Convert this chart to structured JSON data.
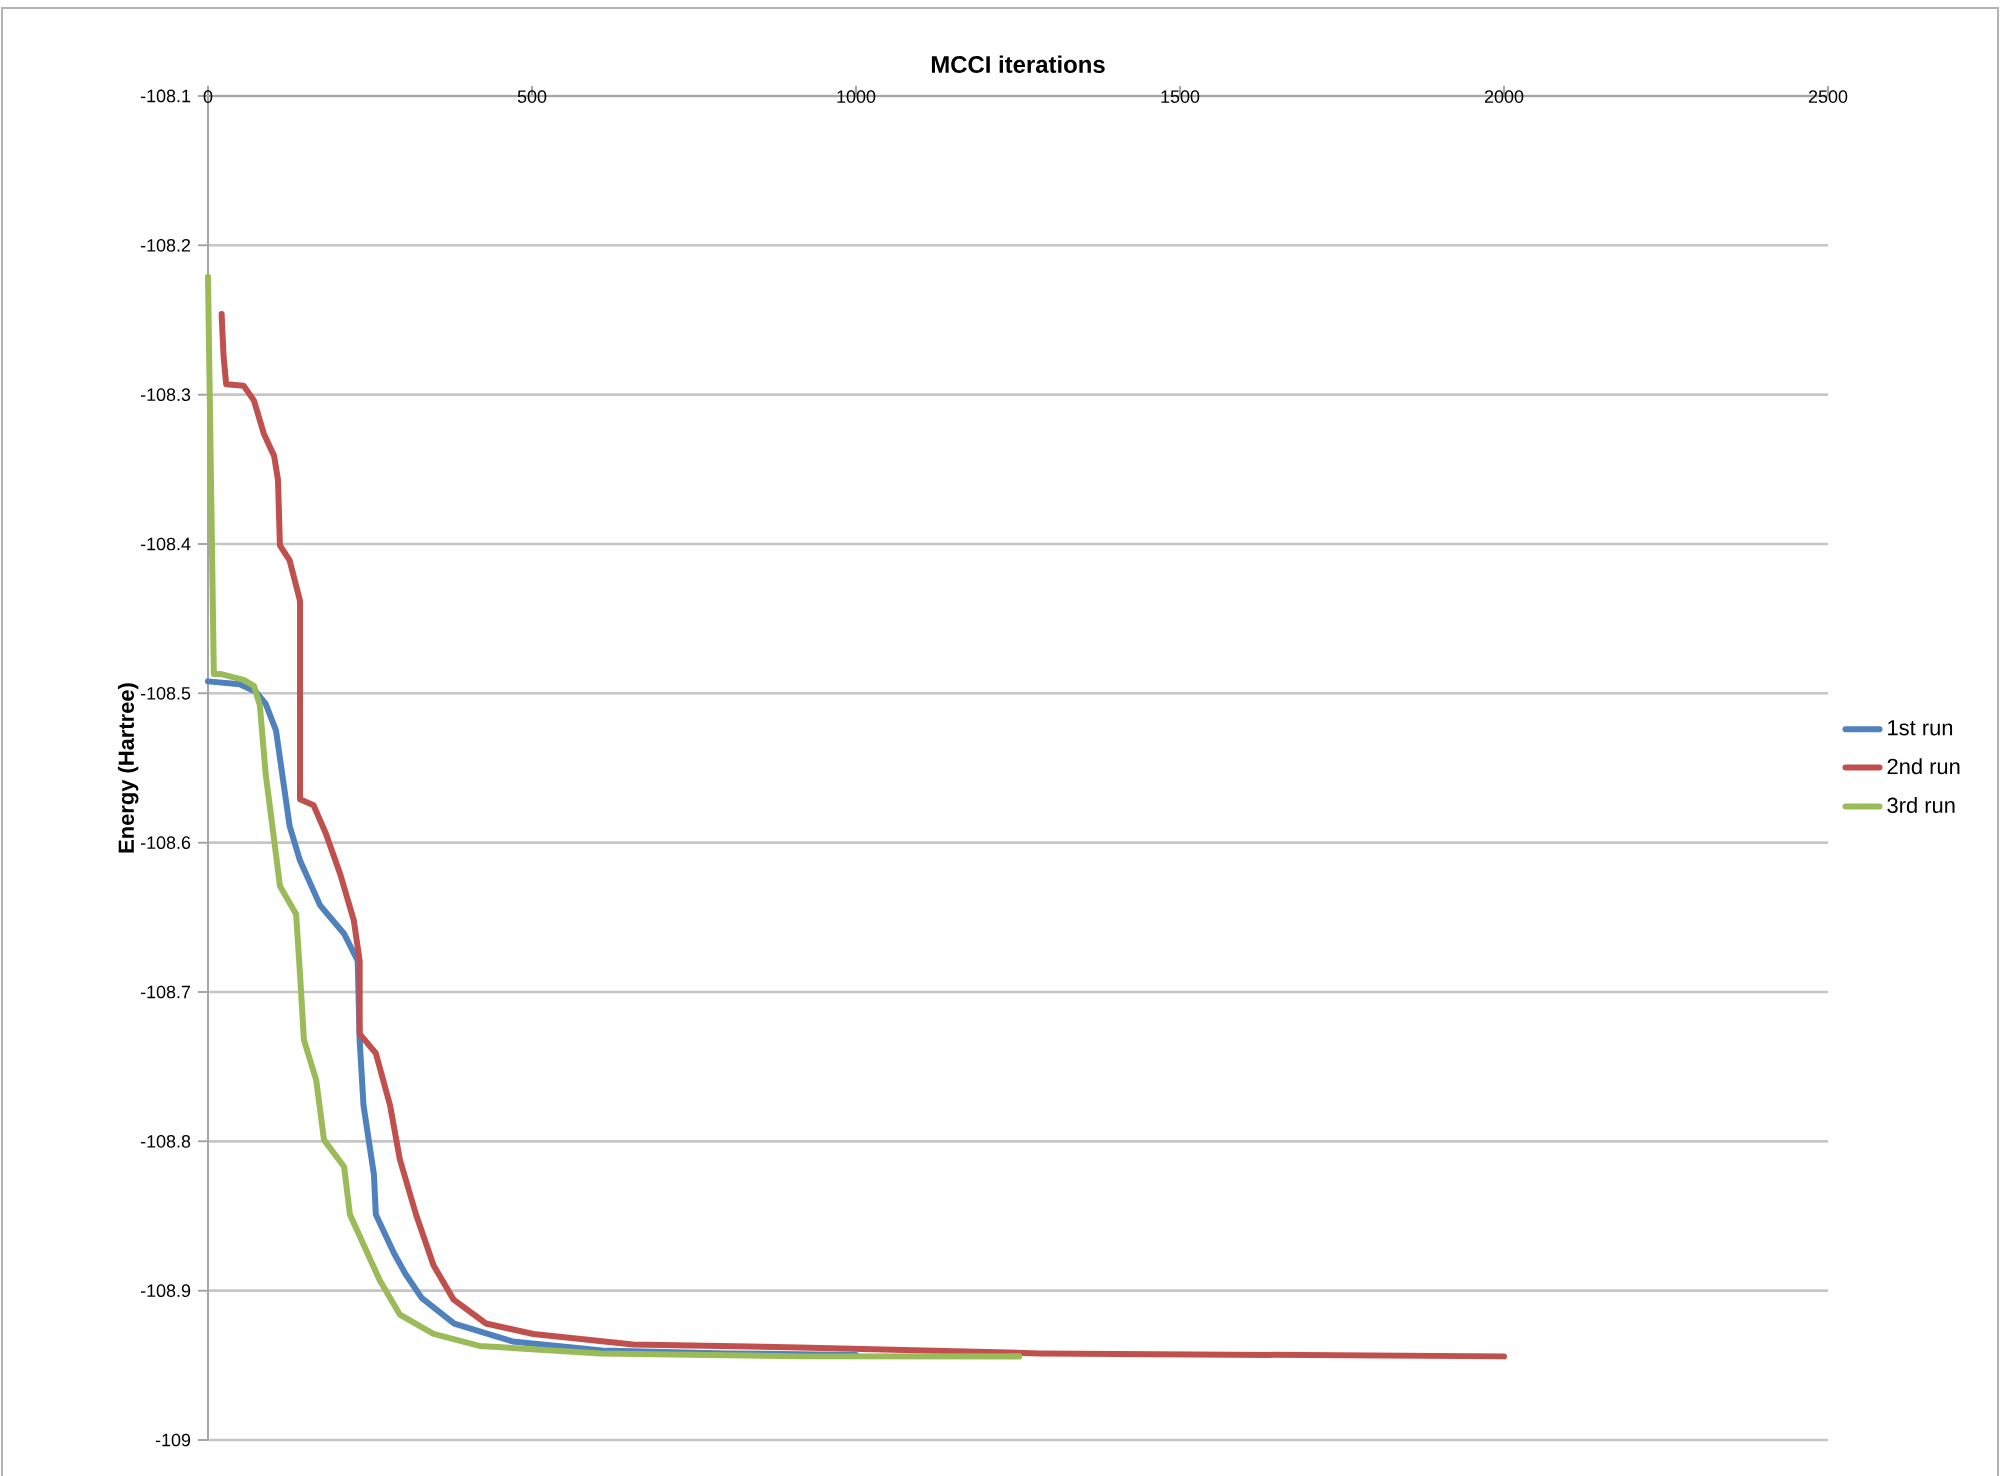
{
  "chart_data": {
    "type": "line",
    "title": "MCCI iterations",
    "ylabel": "Energy (Hartree)",
    "xlim": [
      0,
      2500
    ],
    "xticks": [
      0,
      500,
      1000,
      1500,
      2000,
      2500
    ],
    "ylim": [
      -109,
      -108.1
    ],
    "yticks": [
      -109,
      -108.9,
      -108.8,
      -108.7,
      -108.6,
      -108.5,
      -108.4,
      -108.3,
      -108.2,
      -108.1
    ],
    "grid": "y",
    "legend": "right",
    "series": [
      {
        "name": "1st run",
        "color": "#4f81bd",
        "x": [
          0,
          49,
          74,
          89,
          105,
          126,
          142,
          173,
          210,
          231,
          234,
          240,
          256,
          259,
          287,
          305,
          330,
          380,
          470,
          608,
          800,
          1000
        ],
        "values": [
          -108.492,
          -108.494,
          -108.499,
          -108.507,
          -108.525,
          -108.589,
          -108.612,
          -108.642,
          -108.661,
          -108.679,
          -108.732,
          -108.776,
          -108.822,
          -108.849,
          -108.875,
          -108.889,
          -108.905,
          -108.922,
          -108.934,
          -108.94,
          -108.942,
          -108.943
        ]
      },
      {
        "name": "2nd run",
        "color": "#c0504d",
        "x": [
          21,
          24,
          28,
          55,
          71,
          86,
          102,
          108,
          111,
          126,
          142,
          142,
          163,
          182,
          204,
          225,
          234,
          234,
          259,
          281,
          296,
          321,
          348,
          379,
          429,
          502,
          656,
          913,
          1283,
          2000
        ],
        "values": [
          -108.246,
          -108.274,
          -108.293,
          -108.294,
          -108.304,
          -108.326,
          -108.341,
          -108.357,
          -108.401,
          -108.411,
          -108.438,
          -108.571,
          -108.575,
          -108.594,
          -108.621,
          -108.652,
          -108.679,
          -108.728,
          -108.741,
          -108.776,
          -108.812,
          -108.849,
          -108.883,
          -108.906,
          -108.922,
          -108.929,
          -108.936,
          -108.938,
          -108.942,
          -108.944
        ]
      },
      {
        "name": "3rd run",
        "color": "#9bbb59",
        "x": [
          0,
          9,
          19,
          55,
          71,
          80,
          89,
          102,
          111,
          136,
          142,
          148,
          167,
          179,
          210,
          219,
          244,
          265,
          296,
          348,
          419,
          605,
          913,
          1252
        ],
        "values": [
          -108.221,
          -108.487,
          -108.487,
          -108.491,
          -108.495,
          -108.508,
          -108.554,
          -108.598,
          -108.629,
          -108.648,
          -108.688,
          -108.732,
          -108.759,
          -108.799,
          -108.817,
          -108.849,
          -108.873,
          -108.893,
          -108.916,
          -108.929,
          -108.937,
          -108.942,
          -108.944,
          -108.944
        ]
      }
    ]
  }
}
